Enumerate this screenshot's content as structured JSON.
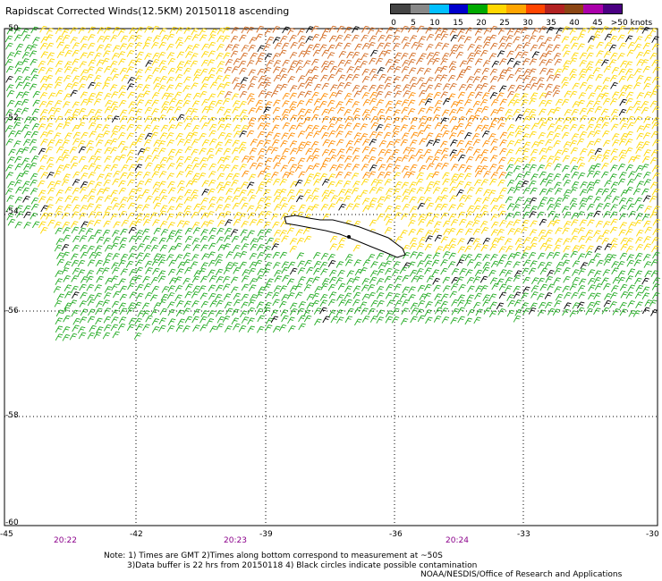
{
  "title": "Rapidscat Corrected Winds(12.5KM) 20150118 ascending",
  "legend": {
    "colors": [
      "#444444",
      "#888888",
      "#00bfff",
      "#0000cd",
      "#00aa00",
      "#ffd700",
      "#ffa500",
      "#ff4500",
      "#b22222",
      "#8b4513",
      "#aa00aa",
      "#4b0082"
    ],
    "labels": [
      "0",
      "5",
      "10",
      "15",
      "20",
      "25",
      "30",
      "35",
      "40",
      "45",
      ">50 knots"
    ]
  },
  "axes": {
    "lon_labels": [
      "-45",
      "-42",
      "-39",
      "-36",
      "-33",
      "-30"
    ],
    "lat_labels": [
      "-50",
      "-52",
      "-54",
      "-56",
      "-58",
      "-60"
    ]
  },
  "times": [
    "20:22",
    "20:23",
    "20:24"
  ],
  "notes": [
    "Note: 1) Times are GMT 2)Times along bottom correspond to measurement at ~50S",
    "3)Data buffer is 22 hrs from 20150118 4) Black circles indicate possible contamination"
  ],
  "credit": "NOAA/NESDIS/Office of Research and Applications",
  "wind_zones": [
    {
      "name": "north-strong",
      "color": "#ff8c00"
    },
    {
      "name": "core",
      "color": "#d2691e"
    },
    {
      "name": "moderate",
      "color": "#ffd700"
    },
    {
      "name": "calm-south",
      "color": "#22aa22"
    }
  ]
}
